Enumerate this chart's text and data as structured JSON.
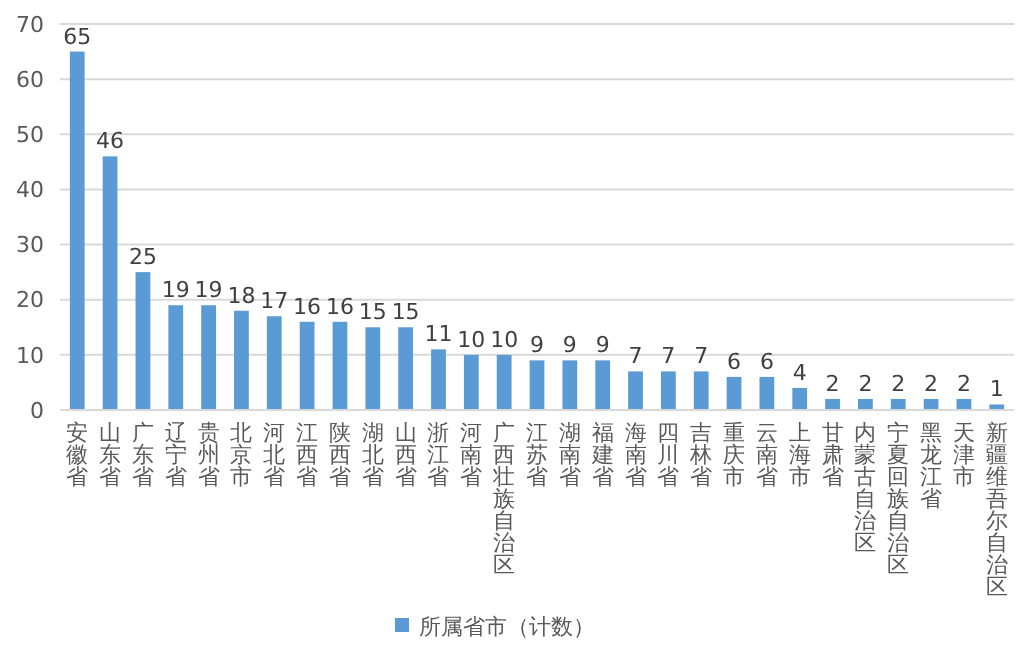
{
  "chart_data": {
    "type": "bar",
    "categories": [
      "安徽省",
      "山东省",
      "广东省",
      "辽宁省",
      "贵州省",
      "北京市",
      "河北省",
      "江西省",
      "陕西省",
      "湖北省",
      "山西省",
      "浙江省",
      "河南省",
      "广西壮族自治区",
      "江苏省",
      "湖南省",
      "福建省",
      "海南省",
      "四川省",
      "吉林省",
      "重庆市",
      "云南省",
      "上海市",
      "甘肃省",
      "内蒙古自治区",
      "宁夏回族自治区",
      "黑龙江省",
      "天津市",
      "新疆维吾尔自治区"
    ],
    "series": [
      {
        "name": "所属省市（计数）",
        "color": "#5b9bd5",
        "values": [
          65,
          46,
          25,
          19,
          19,
          18,
          17,
          16,
          16,
          15,
          15,
          11,
          10,
          10,
          9,
          9,
          9,
          7,
          7,
          7,
          6,
          6,
          4,
          2,
          2,
          2,
          2,
          2,
          1
        ]
      }
    ],
    "ylim": [
      0,
      70
    ],
    "yticks": [
      0,
      10,
      20,
      30,
      40,
      50,
      60,
      70
    ],
    "grid": "y",
    "legend": "bottom",
    "data_labels": true
  }
}
